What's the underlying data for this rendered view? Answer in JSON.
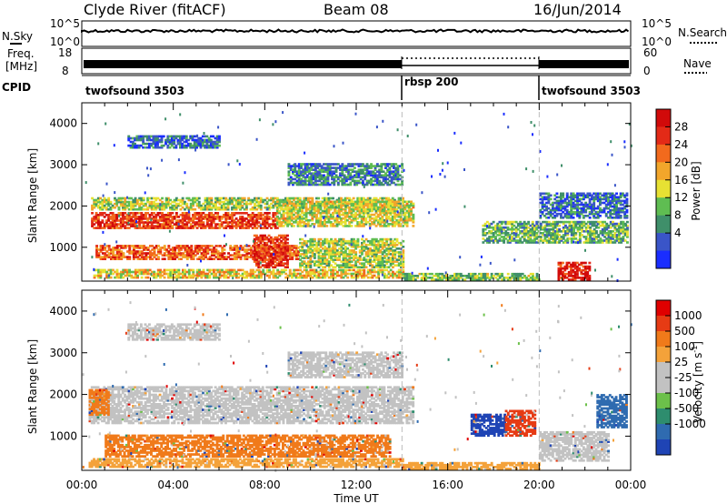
{
  "header": {
    "title": "Clyde River (fitACF)",
    "beam": "Beam 08",
    "date": "16/Jun/2014"
  },
  "chart_data": [
    {
      "type": "line",
      "panel": "noise",
      "left_label": "N.Sky",
      "right_label": "N.Search",
      "left_ticks": [
        "10^5",
        "10^0"
      ],
      "right_ticks": [
        "10^5",
        "10^0"
      ]
    },
    {
      "type": "line",
      "panel": "freq-nave",
      "left_label_line1": "Freq.",
      "left_label_line2": "[MHz]",
      "right_label": "Nave",
      "left_ticks": [
        "18",
        "8"
      ],
      "right_ticks": [
        "60",
        "0"
      ]
    },
    {
      "type": "table",
      "panel": "cpid",
      "label": "CPID",
      "segments": [
        {
          "name": "twofsound 3503",
          "start_hour": 0,
          "end_hour": 14
        },
        {
          "name": "rbsp 200",
          "start_hour": 14,
          "end_hour": 20
        },
        {
          "name": "twofsound 3503",
          "start_hour": 20,
          "end_hour": 24
        }
      ]
    },
    {
      "type": "heatmap",
      "panel": "power",
      "ylabel": "Slant Range [km]",
      "ylim": [
        180,
        4500
      ],
      "yticks": [
        1000,
        2000,
        3000,
        4000
      ],
      "colorbar_label": "Power [dB]",
      "colorbar_ticks": [
        4,
        8,
        12,
        16,
        20,
        24,
        28
      ],
      "colors": [
        "#1a2dff",
        "#3a55c8",
        "#3f8f6a",
        "#5fbd52",
        "#e7e133",
        "#f2a62b",
        "#f26a1d",
        "#e32a17",
        "#d10a0a"
      ],
      "bands": [
        {
          "t0": 0.4,
          "t1": 14.0,
          "r0": 1900,
          "r1": 2200,
          "level": 0.45
        },
        {
          "t0": 0.4,
          "t1": 8.5,
          "r0": 1450,
          "r1": 1850,
          "level": 0.82
        },
        {
          "t0": 8.5,
          "t1": 14.5,
          "r0": 1500,
          "r1": 2100,
          "level": 0.5
        },
        {
          "t0": 0.6,
          "t1": 9.5,
          "r0": 700,
          "r1": 1050,
          "level": 0.75
        },
        {
          "t0": 7.5,
          "t1": 9.0,
          "r0": 500,
          "r1": 1300,
          "level": 0.85
        },
        {
          "t0": 9.5,
          "t1": 14.0,
          "r0": 500,
          "r1": 1200,
          "level": 0.45
        },
        {
          "t0": 0.5,
          "t1": 14.0,
          "r0": 250,
          "r1": 450,
          "level": 0.55
        },
        {
          "t0": 14.0,
          "t1": 20.0,
          "r0": 200,
          "r1": 350,
          "level": 0.4
        },
        {
          "t0": 9.0,
          "t1": 14.0,
          "r0": 2500,
          "r1": 3000,
          "level": 0.25
        },
        {
          "t0": 17.5,
          "t1": 23.8,
          "r0": 1100,
          "r1": 1600,
          "level": 0.35
        },
        {
          "t0": 20.8,
          "t1": 22.2,
          "r0": 200,
          "r1": 650,
          "level": 0.9
        },
        {
          "t0": 2.0,
          "t1": 6.0,
          "r0": 3400,
          "r1": 3700,
          "level": 0.2
        },
        {
          "t0": 20.0,
          "t1": 23.8,
          "r0": 1700,
          "r1": 2300,
          "level": 0.2
        }
      ]
    },
    {
      "type": "heatmap",
      "panel": "velocity",
      "ylabel": "Slant Range [km]",
      "ylim": [
        180,
        4500
      ],
      "yticks": [
        1000,
        2000,
        3000,
        4000
      ],
      "xlabel": "Time UT",
      "xticks": [
        "00:00",
        "04:00",
        "08:00",
        "12:00",
        "16:00",
        "20:00",
        "00:00"
      ],
      "xlim": [
        0,
        24
      ],
      "colorbar_label": "Velocity [m s",
      "colorbar_label_sup": "-1",
      "colorbar_label_end": "]",
      "colorbar_ticks": [
        1000,
        500,
        100,
        25,
        -25,
        -100,
        -500,
        -1000
      ],
      "colors": [
        "#1f44b5",
        "#2f6bb0",
        "#2e8d6e",
        "#6cc04a",
        "#c2c2c2",
        "#c2c2c2",
        "#f4a23a",
        "#f07a1a",
        "#e63b14",
        "#e00000"
      ],
      "bands": [
        {
          "t0": 0.3,
          "t1": 14.5,
          "r0": 1300,
          "r1": 2200,
          "color": "#c2c2c2"
        },
        {
          "t0": 0.3,
          "t1": 1.2,
          "r0": 1500,
          "r1": 2100,
          "color": "#f07a1a"
        },
        {
          "t0": 1.0,
          "t1": 13.5,
          "r0": 500,
          "r1": 1000,
          "color": "#f07a1a"
        },
        {
          "t0": 0.3,
          "t1": 14.0,
          "r0": 250,
          "r1": 450,
          "color": "#f4a23a"
        },
        {
          "t0": 14.0,
          "t1": 20.0,
          "r0": 200,
          "r1": 350,
          "color": "#f4a23a"
        },
        {
          "t0": 9.0,
          "t1": 14.0,
          "r0": 2400,
          "r1": 3000,
          "color": "#c2c2c2"
        },
        {
          "t0": 17.0,
          "t1": 18.5,
          "r0": 1000,
          "r1": 1500,
          "color": "#1f44b5"
        },
        {
          "t0": 18.5,
          "t1": 19.8,
          "r0": 1000,
          "r1": 1600,
          "color": "#e63b14"
        },
        {
          "t0": 22.5,
          "t1": 23.8,
          "r0": 1200,
          "r1": 2000,
          "color": "#2f6bb0"
        },
        {
          "t0": 20.0,
          "t1": 23.0,
          "r0": 400,
          "r1": 1100,
          "color": "#c2c2c2"
        },
        {
          "t0": 2.0,
          "t1": 6.0,
          "r0": 3300,
          "r1": 3700,
          "color": "#c2c2c2"
        }
      ]
    }
  ]
}
